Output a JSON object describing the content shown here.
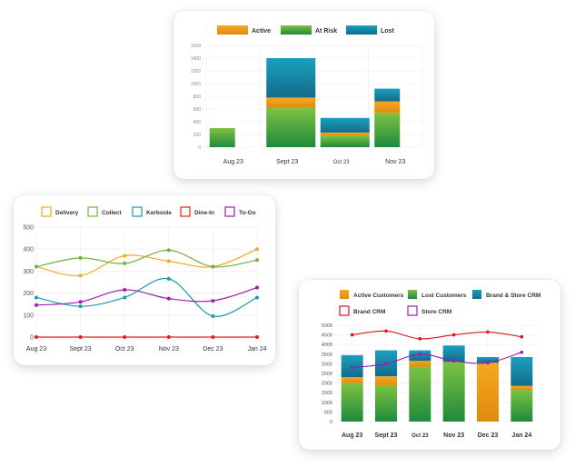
{
  "colors": {
    "active_top": "#f6a821",
    "active_bottom": "#e08a0d",
    "atrisk_top": "#7dc242",
    "atrisk_bottom": "#1f8a3c",
    "lost_top": "#1ba0c0",
    "lost_bottom": "#136b8a",
    "delivery": "#f5a623",
    "collect": "#6db33f",
    "kerbside": "#1b9ab5",
    "dinein": "#e0201b",
    "togo": "#a21caf",
    "brand_crm": "#d6151b",
    "store_crm": "#9b1bb0"
  },
  "chart_data": [
    {
      "id": "chart1",
      "type": "bar",
      "stacked": true,
      "categories": [
        "Aug 23",
        "Sept 23",
        "Oct 23",
        "Nov 23"
      ],
      "series": [
        {
          "name": "Active",
          "values": [
            0,
            160,
            50,
            180
          ]
        },
        {
          "name": "At Risk",
          "values": [
            300,
            620,
            180,
            540
          ]
        },
        {
          "name": "Lost",
          "values": [
            0,
            620,
            230,
            200
          ]
        }
      ],
      "ylim": [
        0,
        1600
      ],
      "yticks": [
        "0",
        "200",
        "400",
        "600",
        "800",
        "1000",
        "1200",
        "1400",
        "1600"
      ],
      "grid": true,
      "legend": "top"
    },
    {
      "id": "chart2",
      "type": "line",
      "smooth": true,
      "categories": [
        "Aug 23",
        "Sept 23",
        "Oct 23",
        "Nov 23",
        "Dec 23",
        "Jan 24"
      ],
      "series": [
        {
          "name": "Delivery",
          "values": [
            320,
            280,
            370,
            345,
            320,
            400
          ]
        },
        {
          "name": "Collect",
          "values": [
            320,
            360,
            335,
            395,
            320,
            350
          ]
        },
        {
          "name": "Kerbside",
          "values": [
            180,
            140,
            180,
            265,
            95,
            180
          ]
        },
        {
          "name": "Dine-In",
          "values": [
            0,
            0,
            0,
            0,
            0,
            0
          ]
        },
        {
          "name": "To-Go",
          "values": [
            145,
            160,
            215,
            175,
            165,
            225
          ]
        }
      ],
      "ylim": [
        0,
        500
      ],
      "yticks": [
        "0",
        "100",
        "200",
        "300",
        "400",
        "500"
      ],
      "grid": true,
      "legend": "top"
    },
    {
      "id": "chart3",
      "type": "bar",
      "stacked": true,
      "categories": [
        "Aug 23",
        "Sept 23",
        "Oct 23",
        "Nov 23",
        "Dec 23",
        "Jan 24"
      ],
      "series": [
        {
          "name": "Active Customers",
          "values": [
            300,
            500,
            300,
            0,
            3050,
            200
          ]
        },
        {
          "name": "Lost Customers",
          "values": [
            2000,
            1850,
            2850,
            3100,
            0,
            1650
          ]
        },
        {
          "name": "Brand & Store CRM",
          "values": [
            1150,
            1350,
            550,
            850,
            300,
            1500
          ]
        }
      ],
      "lines": [
        {
          "name": "Brand CRM",
          "values": [
            4500,
            4700,
            4300,
            4500,
            4650,
            4400
          ]
        },
        {
          "name": "Store CRM",
          "values": [
            2800,
            3000,
            3500,
            3150,
            3050,
            3600
          ]
        }
      ],
      "ylim": [
        0,
        5000
      ],
      "yticks": [
        "0",
        "500",
        "1000",
        "1500",
        "2000",
        "2500",
        "3000",
        "3500",
        "4000",
        "4500",
        "5000"
      ],
      "grid": true,
      "legend": "top"
    }
  ]
}
